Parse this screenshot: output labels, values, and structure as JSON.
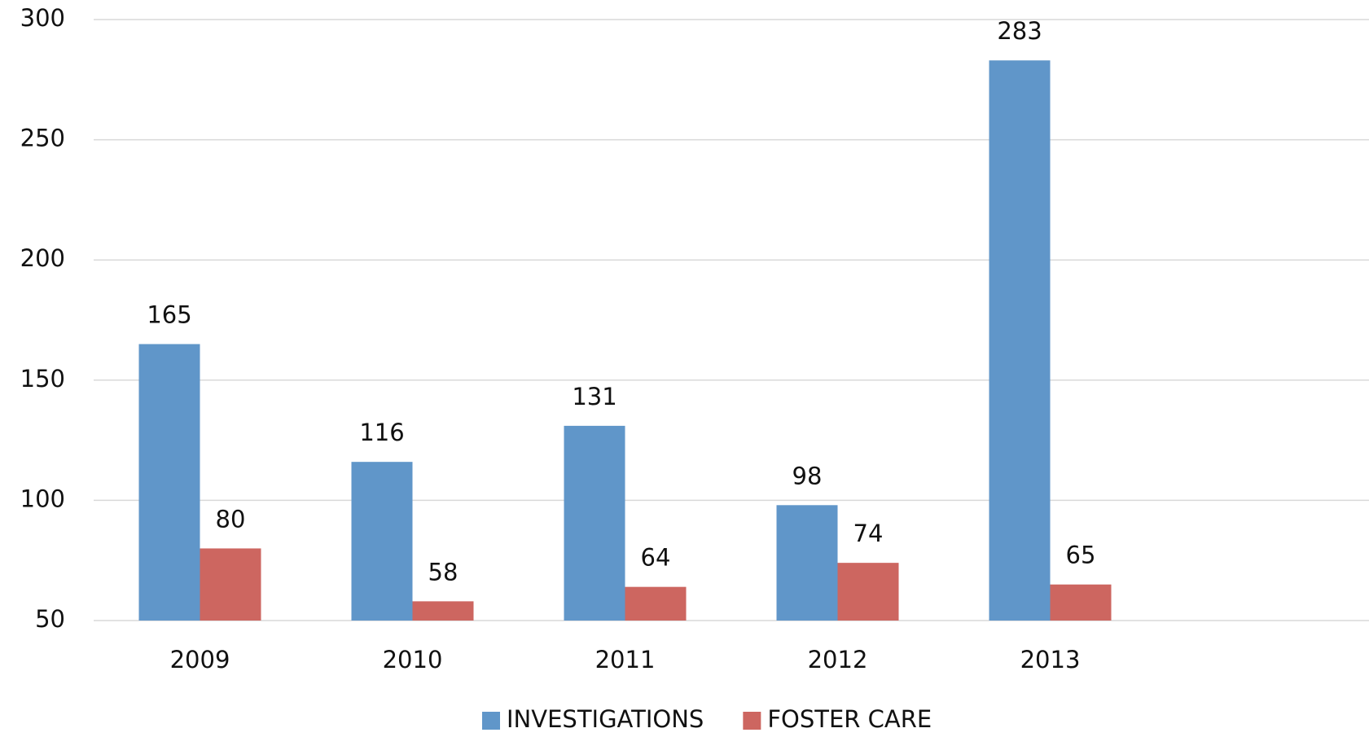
{
  "chart_data": {
    "type": "bar",
    "categories": [
      "2009",
      "2010",
      "2011",
      "2012",
      "2013",
      null
    ],
    "series": [
      {
        "name": "INVESTIGATIONS",
        "color": "#6096c9",
        "values": [
          165,
          116,
          131,
          98,
          283,
          null
        ]
      },
      {
        "name": "FOSTER CARE",
        "color": "#cd6660",
        "values": [
          80,
          58,
          64,
          74,
          65,
          null
        ]
      }
    ],
    "ylim": [
      50,
      300
    ],
    "yticks": [
      50,
      100,
      150,
      200,
      250,
      300
    ],
    "grid": true,
    "legend": "bottom"
  }
}
